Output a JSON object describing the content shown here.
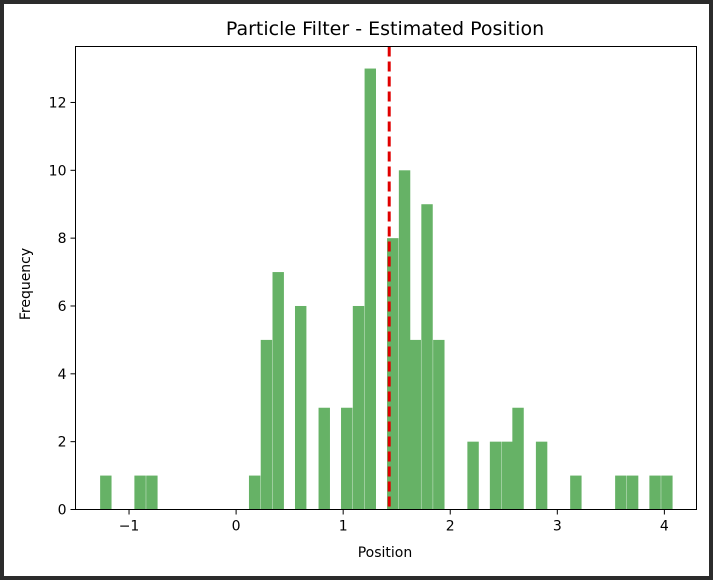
{
  "chart_data": {
    "type": "bar",
    "subtype": "histogram",
    "title": "Particle Filter - Estimated Position",
    "xlabel": "Position",
    "ylabel": "Frequency",
    "xlim": [
      -1.5,
      4.3
    ],
    "ylim": [
      0,
      13.65
    ],
    "xticks": [
      -1,
      0,
      1,
      2,
      3,
      4
    ],
    "xtick_labels": [
      "−1",
      "0",
      "1",
      "2",
      "3",
      "4"
    ],
    "yticks": [
      0,
      2,
      4,
      6,
      8,
      10,
      12
    ],
    "ytick_labels": [
      "0",
      "2",
      "4",
      "6",
      "8",
      "10",
      "12"
    ],
    "bin_width": 0.1066,
    "bins": [
      {
        "x0": -1.27,
        "count": 1
      },
      {
        "x0": -0.95,
        "count": 1
      },
      {
        "x0": -0.84,
        "count": 1
      },
      {
        "x0": 0.12,
        "count": 1
      },
      {
        "x0": 0.23,
        "count": 5
      },
      {
        "x0": 0.34,
        "count": 7
      },
      {
        "x0": 0.55,
        "count": 6
      },
      {
        "x0": 0.77,
        "count": 3
      },
      {
        "x0": 0.98,
        "count": 3
      },
      {
        "x0": 1.09,
        "count": 6
      },
      {
        "x0": 1.2,
        "count": 13
      },
      {
        "x0": 1.41,
        "count": 8
      },
      {
        "x0": 1.52,
        "count": 10
      },
      {
        "x0": 1.62,
        "count": 5
      },
      {
        "x0": 1.73,
        "count": 9
      },
      {
        "x0": 1.84,
        "count": 5
      },
      {
        "x0": 2.16,
        "count": 2
      },
      {
        "x0": 2.37,
        "count": 2
      },
      {
        "x0": 2.48,
        "count": 2
      },
      {
        "x0": 2.58,
        "count": 3
      },
      {
        "x0": 2.8,
        "count": 2
      },
      {
        "x0": 3.12,
        "count": 1
      },
      {
        "x0": 3.54,
        "count": 1
      },
      {
        "x0": 3.65,
        "count": 1
      },
      {
        "x0": 3.86,
        "count": 1
      },
      {
        "x0": 3.97,
        "count": 1
      }
    ],
    "estimate_line": {
      "x": 1.43,
      "style": "dashed"
    },
    "colors": {
      "bar": "#66b266",
      "estimate_line": "#e00000"
    },
    "grid": false
  }
}
